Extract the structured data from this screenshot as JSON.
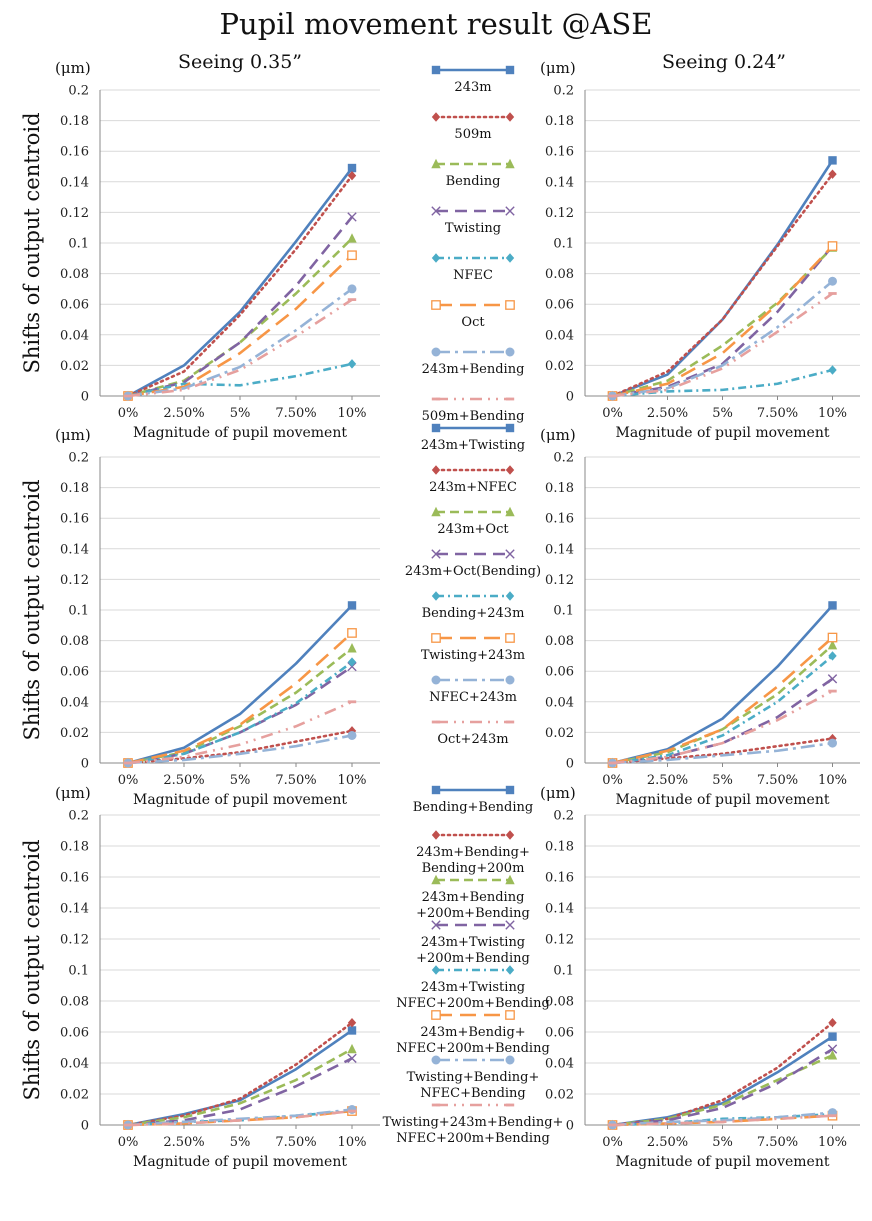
{
  "title": "Pupil movement result @ASE",
  "columns": [
    "Seeing 0.35”",
    "Seeing 0.24”"
  ],
  "y_axis_label": "Shifts of output centroid",
  "y_unit": "(μm)",
  "x_axis_label": "Magnitude of pupil movement",
  "styles": [
    {
      "color": "#4f81bd",
      "dash": "",
      "marker": "square"
    },
    {
      "color": "#c0504d",
      "dash": "2,4",
      "marker": "diamond"
    },
    {
      "color": "#9bbb59",
      "dash": "9,5",
      "marker": "triangle"
    },
    {
      "color": "#8064a2",
      "dash": "12,7",
      "marker": "x"
    },
    {
      "color": "#4bacc6",
      "dash": "8,4,2,4",
      "marker": "diamond"
    },
    {
      "color": "#f79646",
      "dash": "16,8",
      "marker": "open-square"
    },
    {
      "color": "#95b3d7",
      "dash": "14,5,3,5",
      "marker": "circle"
    },
    {
      "color": "#e6a09e",
      "dash": "12,6,2,6,2,6",
      "marker": "dash"
    }
  ],
  "chart_data": [
    {
      "type": "line",
      "row": 1,
      "column": "Seeing 0.35”",
      "categories": [
        "0%",
        "2.50%",
        "5%",
        "7.50%",
        "10%"
      ],
      "ylim": [
        0,
        0.2
      ],
      "yticks": [
        "0",
        "0.02",
        "0.04",
        "0.06",
        "0.08",
        "0.1",
        "0.12",
        "0.14",
        "0.16",
        "0.18",
        "0.2"
      ],
      "xlabel": "Magnitude of pupil movement",
      "ylabel": "Shifts of output centroid",
      "series": [
        {
          "name": "243m",
          "values": [
            0,
            0.02,
            0.055,
            0.101,
            0.149
          ]
        },
        {
          "name": "509m",
          "values": [
            0,
            0.016,
            0.053,
            0.096,
            0.144
          ]
        },
        {
          "name": "Bending",
          "values": [
            0,
            0.01,
            0.035,
            0.067,
            0.103
          ]
        },
        {
          "name": "Twisting",
          "values": [
            0,
            0.009,
            0.035,
            0.072,
            0.117
          ]
        },
        {
          "name": "NFEC",
          "values": [
            0,
            0.008,
            0.007,
            0.013,
            0.021
          ]
        },
        {
          "name": "Oct",
          "values": [
            0,
            0.006,
            0.028,
            0.057,
            0.092
          ]
        },
        {
          "name": "243m+Bending",
          "values": [
            0,
            0.005,
            0.019,
            0.043,
            0.07
          ]
        },
        {
          "name": "509m+Bending",
          "values": [
            0,
            0.004,
            0.017,
            0.039,
            0.063
          ]
        }
      ]
    },
    {
      "type": "line",
      "row": 1,
      "column": "Seeing 0.24”",
      "categories": [
        "0%",
        "2.50%",
        "5%",
        "7.50%",
        "10%"
      ],
      "ylim": [
        0,
        0.2
      ],
      "yticks": [
        "0",
        "0.02",
        "0.04",
        "0.06",
        "0.08",
        "0.1",
        "0.12",
        "0.14",
        "0.16",
        "0.18",
        "0.2"
      ],
      "xlabel": "Magnitude of pupil movement",
      "ylabel": "Shifts of output centroid",
      "series": [
        {
          "name": "243m",
          "values": [
            0,
            0.014,
            0.05,
            0.099,
            0.154
          ]
        },
        {
          "name": "509m",
          "values": [
            0,
            0.016,
            0.05,
            0.098,
            0.145
          ]
        },
        {
          "name": "Bending",
          "values": [
            0,
            0.01,
            0.033,
            0.061,
            0.097
          ]
        },
        {
          "name": "Twisting",
          "values": [
            0,
            0.006,
            0.021,
            0.055,
            0.098
          ]
        },
        {
          "name": "NFEC",
          "values": [
            0,
            0.003,
            0.004,
            0.008,
            0.017
          ]
        },
        {
          "name": "Oct",
          "values": [
            0,
            0.008,
            0.028,
            0.06,
            0.098
          ]
        },
        {
          "name": "243m+Bending",
          "values": [
            0,
            0.005,
            0.02,
            0.045,
            0.075
          ]
        },
        {
          "name": "509m+Bending",
          "values": [
            0,
            0.004,
            0.018,
            0.042,
            0.067
          ]
        }
      ]
    },
    {
      "type": "line",
      "row": 2,
      "column": "Seeing 0.35”",
      "categories": [
        "0%",
        "2.50%",
        "5%",
        "7.50%",
        "10%"
      ],
      "ylim": [
        0,
        0.2
      ],
      "yticks": [
        "0",
        "0.02",
        "0.04",
        "0.06",
        "0.08",
        "0.1",
        "0.12",
        "0.14",
        "0.16",
        "0.18",
        "0.2"
      ],
      "xlabel": "Magnitude of pupil movement",
      "ylabel": "Shifts of output centroid",
      "series": [
        {
          "name": "243m+Twisting",
          "values": [
            0,
            0.01,
            0.032,
            0.065,
            0.103
          ]
        },
        {
          "name": "243m+NFEC",
          "values": [
            0,
            0.003,
            0.007,
            0.014,
            0.021
          ]
        },
        {
          "name": "243m+Oct",
          "values": [
            0,
            0.007,
            0.024,
            0.046,
            0.075
          ]
        },
        {
          "name": "243m+Oct(Bending)",
          "values": [
            0,
            0.006,
            0.02,
            0.038,
            0.063
          ]
        },
        {
          "name": "Bending+243m",
          "values": [
            0,
            0.006,
            0.02,
            0.039,
            0.066
          ]
        },
        {
          "name": "Twisting+243m",
          "values": [
            0,
            0.008,
            0.025,
            0.052,
            0.085
          ]
        },
        {
          "name": "NFEC+243m",
          "values": [
            0,
            0.002,
            0.006,
            0.011,
            0.018
          ]
        },
        {
          "name": "Oct+243m",
          "values": [
            0,
            0.004,
            0.012,
            0.024,
            0.04
          ]
        }
      ]
    },
    {
      "type": "line",
      "row": 2,
      "column": "Seeing 0.24”",
      "categories": [
        "0%",
        "2.50%",
        "5%",
        "7.50%",
        "10%"
      ],
      "ylim": [
        0,
        0.2
      ],
      "yticks": [
        "0",
        "0.02",
        "0.04",
        "0.06",
        "0.08",
        "0.1",
        "0.12",
        "0.14",
        "0.16",
        "0.18",
        "0.2"
      ],
      "xlabel": "Magnitude of pupil movement",
      "ylabel": "Shifts of output centroid",
      "series": [
        {
          "name": "243m+Twisting",
          "values": [
            0,
            0.009,
            0.029,
            0.063,
            0.103
          ]
        },
        {
          "name": "243m+NFEC",
          "values": [
            0,
            0.003,
            0.006,
            0.011,
            0.016
          ]
        },
        {
          "name": "243m+Oct",
          "values": [
            0,
            0.007,
            0.022,
            0.045,
            0.077
          ]
        },
        {
          "name": "243m+Oct(Bending)",
          "values": [
            0,
            0.004,
            0.013,
            0.03,
            0.055
          ]
        },
        {
          "name": "Bending+243m",
          "values": [
            0,
            0.005,
            0.018,
            0.04,
            0.07
          ]
        },
        {
          "name": "Twisting+243m",
          "values": [
            0,
            0.008,
            0.022,
            0.05,
            0.082
          ]
        },
        {
          "name": "NFEC+243m",
          "values": [
            0,
            0.002,
            0.005,
            0.008,
            0.013
          ]
        },
        {
          "name": "Oct+243m",
          "values": [
            0,
            0.004,
            0.013,
            0.028,
            0.047
          ]
        }
      ]
    },
    {
      "type": "line",
      "row": 3,
      "column": "Seeing 0.35”",
      "categories": [
        "0%",
        "2.50%",
        "5%",
        "7.50%",
        "10%"
      ],
      "ylim": [
        0,
        0.2
      ],
      "yticks": [
        "0",
        "0.02",
        "0.04",
        "0.06",
        "0.08",
        "0.1",
        "0.12",
        "0.14",
        "0.16",
        "0.18",
        "0.2"
      ],
      "xlabel": "Magnitude of pupil movement",
      "ylabel": "Shifts of output centroid",
      "series": [
        {
          "name": "Bending+Bending",
          "values": [
            0,
            0.007,
            0.016,
            0.036,
            0.061
          ]
        },
        {
          "name": "243m+Bending+ Bending+200m",
          "values": [
            0,
            0.006,
            0.017,
            0.039,
            0.066
          ]
        },
        {
          "name": "243m+Bending +200m+Bending",
          "values": [
            0,
            0.005,
            0.014,
            0.029,
            0.049
          ]
        },
        {
          "name": "243m+Twisting +200m+Bending",
          "values": [
            0,
            0.003,
            0.01,
            0.025,
            0.043
          ]
        },
        {
          "name": "243m+Twisting NFEC+200m+Bending",
          "values": [
            0,
            0.002,
            0.003,
            0.006,
            0.009
          ]
        },
        {
          "name": "243m+Bendig+ NFEC+200m+Bending",
          "values": [
            0,
            0.001,
            0.003,
            0.005,
            0.009
          ]
        },
        {
          "name": "Twisting+Bending+ NFEC+Bending",
          "values": [
            0,
            0.002,
            0.004,
            0.006,
            0.01
          ]
        },
        {
          "name": "Twisting+243m+Bending+ NFEC+200m+Bending",
          "values": [
            0,
            0.001,
            0.003,
            0.005,
            0.009
          ]
        }
      ]
    },
    {
      "type": "line",
      "row": 3,
      "column": "Seeing 0.24”",
      "categories": [
        "0%",
        "2.50%",
        "5%",
        "7.50%",
        "10%"
      ],
      "ylim": [
        0,
        0.2
      ],
      "yticks": [
        "0",
        "0.02",
        "0.04",
        "0.06",
        "0.08",
        "0.1",
        "0.12",
        "0.14",
        "0.16",
        "0.18",
        "0.2"
      ],
      "xlabel": "Magnitude of pupil movement",
      "ylabel": "Shifts of output centroid",
      "series": [
        {
          "name": "Bending+Bending",
          "values": [
            0,
            0.005,
            0.014,
            0.034,
            0.057
          ]
        },
        {
          "name": "243m+Bending+ Bending+200m",
          "values": [
            0,
            0.004,
            0.016,
            0.037,
            0.066
          ]
        },
        {
          "name": "243m+Bending +200m+Bending",
          "values": [
            0,
            0.004,
            0.013,
            0.029,
            0.045
          ]
        },
        {
          "name": "243m+Twisting +200m+Bending",
          "values": [
            0,
            0.003,
            0.011,
            0.027,
            0.049
          ]
        },
        {
          "name": "243m+Twisting NFEC+200m+Bending",
          "values": [
            0,
            0.001,
            0.004,
            0.005,
            0.007
          ]
        },
        {
          "name": "243m+Bendig+ NFEC+200m+Bending",
          "values": [
            0,
            0.001,
            0.002,
            0.004,
            0.006
          ]
        },
        {
          "name": "Twisting+Bending+ NFEC+Bending",
          "values": [
            0,
            0.002,
            0.003,
            0.005,
            0.008
          ]
        },
        {
          "name": "Twisting+243m+Bending+ NFEC+200m+Bending",
          "values": [
            0,
            0.001,
            0.002,
            0.004,
            0.006
          ]
        }
      ]
    }
  ],
  "legends": [
    {
      "entries": [
        {
          "style": 0,
          "label": "243m"
        },
        {
          "style": 1,
          "label": "509m"
        },
        {
          "style": 2,
          "label": "Bending"
        },
        {
          "style": 3,
          "label": "Twisting"
        },
        {
          "style": 4,
          "label": "NFEC"
        },
        {
          "style": 5,
          "label": "Oct"
        },
        {
          "style": 6,
          "label": "243m+Bending"
        },
        {
          "style": 7,
          "label": "509m+Bending"
        }
      ]
    },
    {
      "entries": [
        {
          "style": 0,
          "label": "243m+Twisting"
        },
        {
          "style": 1,
          "label": "243m+NFEC"
        },
        {
          "style": 2,
          "label": "243m+Oct"
        },
        {
          "style": 3,
          "label": "243m+Oct(Bending)"
        },
        {
          "style": 4,
          "label": "Bending+243m"
        },
        {
          "style": 5,
          "label": "Twisting+243m"
        },
        {
          "style": 6,
          "label": "NFEC+243m"
        },
        {
          "style": 7,
          "label": "Oct+243m"
        }
      ]
    },
    {
      "entries": [
        {
          "style": 0,
          "label": "Bending+Bending"
        },
        {
          "style": 1,
          "label": "243m+Bending+|Bending+200m"
        },
        {
          "style": 2,
          "label": "243m+Bending|+200m+Bending"
        },
        {
          "style": 3,
          "label": "243m+Twisting|+200m+Bending"
        },
        {
          "style": 4,
          "label": "243m+Twisting|NFEC+200m+Bending"
        },
        {
          "style": 5,
          "label": "243m+Bendig+|NFEC+200m+Bending"
        },
        {
          "style": 6,
          "label": "Twisting+Bending+|NFEC+Bending"
        },
        {
          "style": 7,
          "label": "Twisting+243m+Bending+|NFEC+200m+Bending"
        }
      ]
    }
  ]
}
